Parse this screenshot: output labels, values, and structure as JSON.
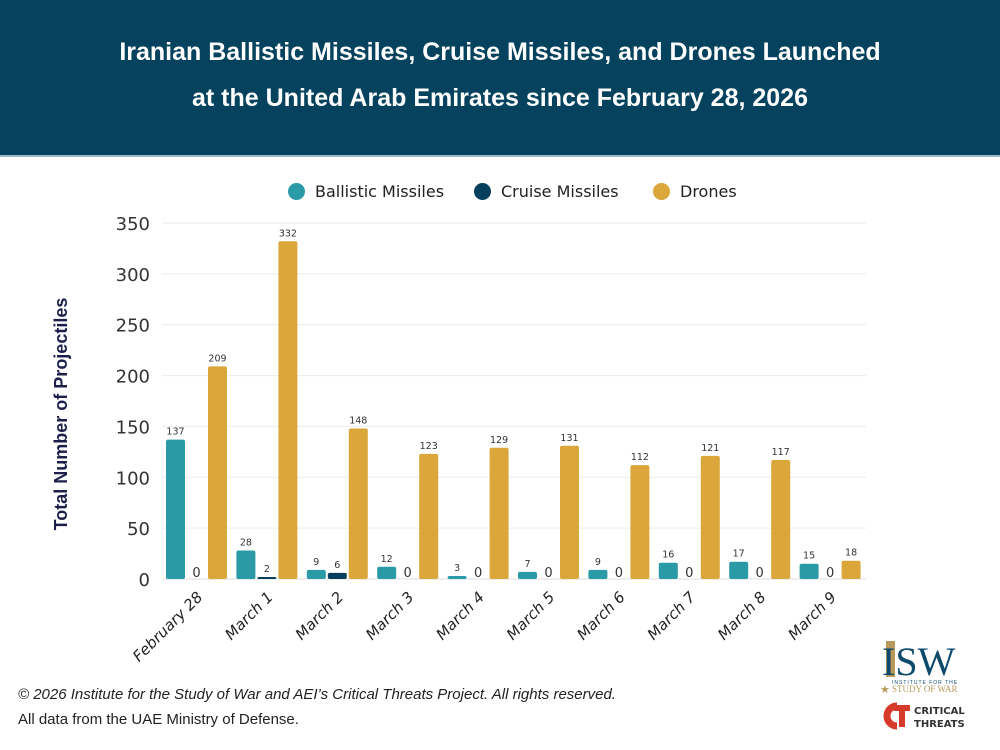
{
  "header": {
    "title_line1": "Iranian Ballistic Missiles, Cruise Missiles, and Drones Launched",
    "title_line2": "at the United Arab Emirates since February 28, 2026"
  },
  "colors": {
    "header_bg": "#04425e",
    "ballistic": "#2a9aa6",
    "cruise": "#063f5c",
    "drones": "#dba63a"
  },
  "footer": {
    "copyright": "© 2026 Institute for the Study of War and AEI’s Critical Threats Project. All rights reserved.",
    "source": "All data from the UAE Ministry of Defense."
  },
  "logos": {
    "isw_main": "ISW",
    "isw_sub1": "INSTITUTE FOR THE",
    "isw_sub2": "STUDY OF WAR",
    "ct_mark": "CT",
    "ct_line1": "CRITICAL",
    "ct_line2": "THREATS"
  },
  "chart_data": {
    "type": "bar",
    "title": "Iranian Ballistic Missiles, Cruise Missiles, and Drones Launched at the United Arab Emirates since February 28, 2026",
    "xlabel": "",
    "ylabel": "Total Number of Projectiles",
    "ylim": [
      0,
      350
    ],
    "yticks": [
      0,
      50,
      100,
      150,
      200,
      250,
      300,
      350
    ],
    "grid": true,
    "legend_position": "top-center",
    "categories": [
      "February 28",
      "March 1",
      "March 2",
      "March 3",
      "March 4",
      "March 5",
      "March 6",
      "March 7",
      "March 8",
      "March 9"
    ],
    "series": [
      {
        "name": "Ballistic Missiles",
        "color": "#2a9aa6",
        "values": [
          137,
          28,
          9,
          12,
          3,
          7,
          9,
          16,
          17,
          15
        ]
      },
      {
        "name": "Cruise Missiles",
        "color": "#063f5c",
        "values": [
          0,
          2,
          6,
          0,
          0,
          0,
          0,
          0,
          0,
          0
        ]
      },
      {
        "name": "Drones",
        "color": "#dba63a",
        "values": [
          209,
          332,
          148,
          123,
          129,
          131,
          112,
          121,
          117,
          18
        ]
      }
    ]
  }
}
